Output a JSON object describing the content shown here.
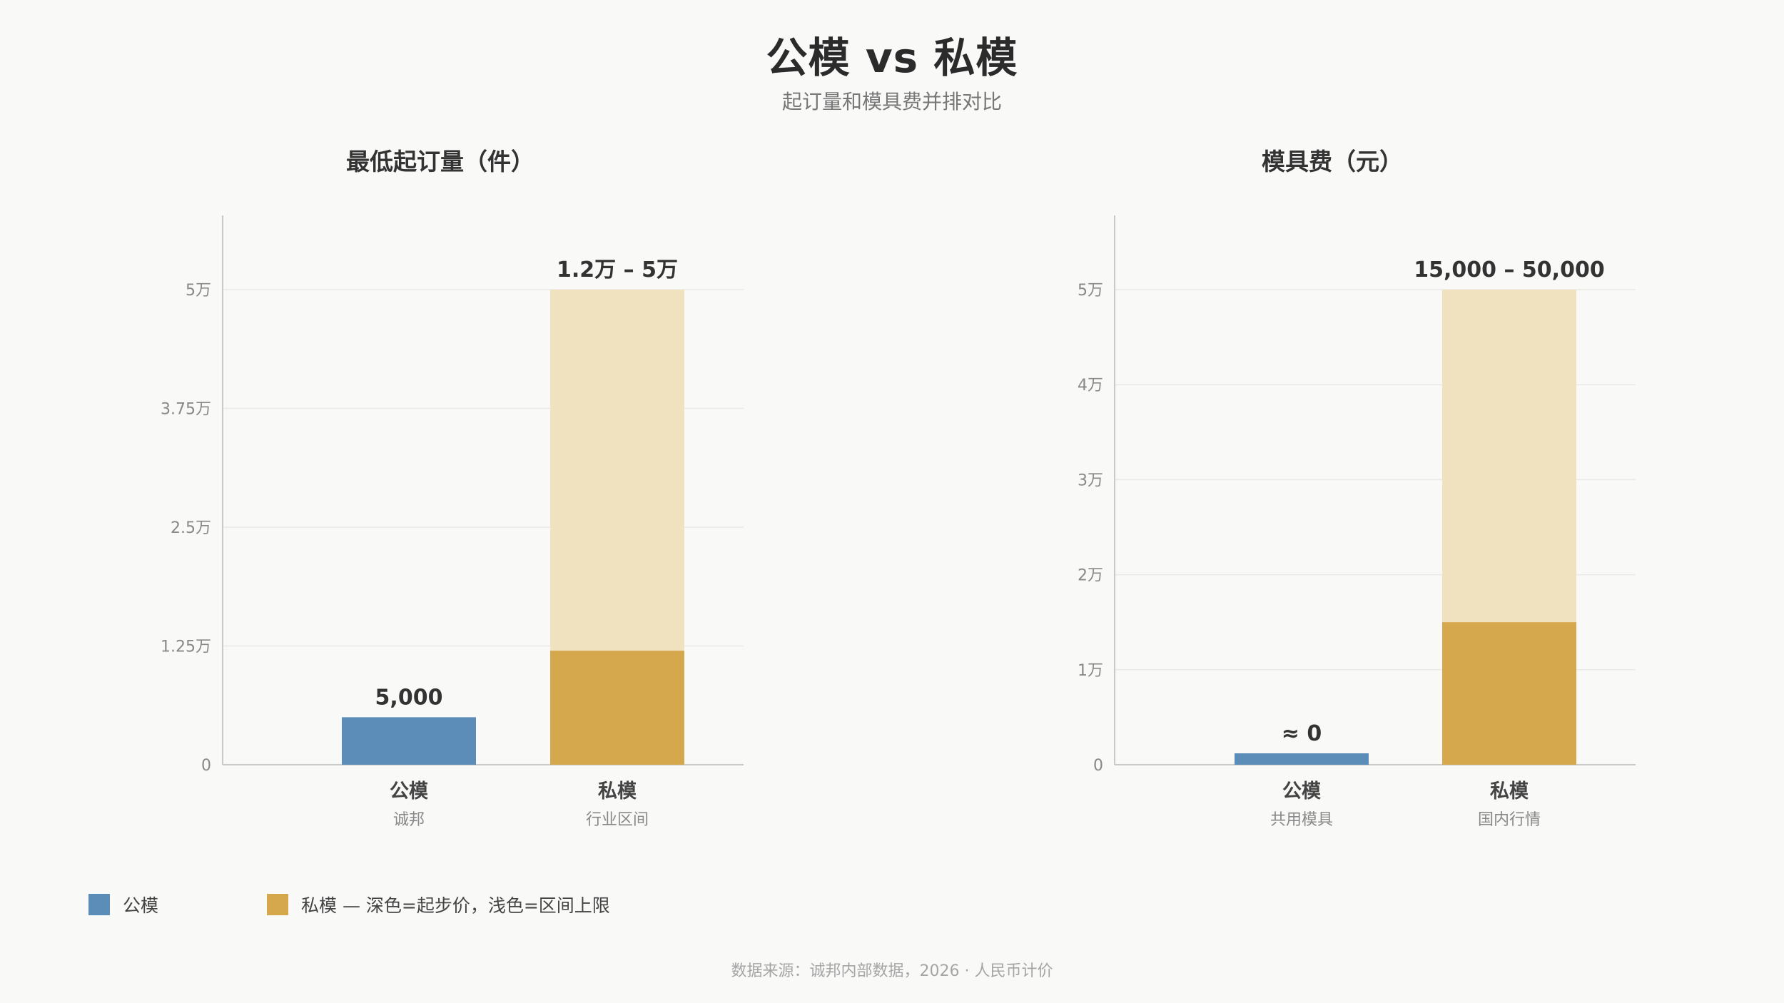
{
  "title": "公模 vs 私模",
  "subtitle": "起订量和模具费并排对比",
  "colors": {
    "public": "#5b8db8",
    "private_dark": "#d6a84d",
    "private_light": "#f0e1bf"
  },
  "chart_data": [
    {
      "type": "bar",
      "title": "最低起订量（件）",
      "ylim": [
        0,
        50000
      ],
      "ticks": [
        {
          "value": 0,
          "label": "0"
        },
        {
          "value": 12500,
          "label": "1.25万"
        },
        {
          "value": 25000,
          "label": "2.5万"
        },
        {
          "value": 37500,
          "label": "3.75万"
        },
        {
          "value": 50000,
          "label": "5万"
        }
      ],
      "bars": [
        {
          "category": "公模",
          "sublabel": "诚邦",
          "value": 5000,
          "upper": null,
          "label": "5,000",
          "series": "公模"
        },
        {
          "category": "私模",
          "sublabel": "行业区间",
          "value": 12000,
          "upper": 50000,
          "label": "1.2万 – 5万",
          "series": "私模"
        }
      ]
    },
    {
      "type": "bar",
      "title": "模具费（元）",
      "ylim": [
        0,
        50000
      ],
      "ticks": [
        {
          "value": 0,
          "label": "0"
        },
        {
          "value": 10000,
          "label": "1万"
        },
        {
          "value": 20000,
          "label": "2万"
        },
        {
          "value": 30000,
          "label": "3万"
        },
        {
          "value": 40000,
          "label": "4万"
        },
        {
          "value": 50000,
          "label": "5万"
        }
      ],
      "bars": [
        {
          "category": "公模",
          "sublabel": "共用模具",
          "value": 0,
          "upper": null,
          "label": "≈ 0",
          "series": "公模"
        },
        {
          "category": "私模",
          "sublabel": "国内行情",
          "value": 15000,
          "upper": 50000,
          "label": "15,000 – 50,000",
          "series": "私模"
        }
      ]
    }
  ],
  "legend": [
    {
      "label": "公模",
      "color": "#5b8db8"
    },
    {
      "label": "私模 — 深色=起步价，浅色=区间上限",
      "color": "#d6a84d"
    }
  ],
  "source": "数据来源：诚邦内部数据，2026 · 人民币计价"
}
